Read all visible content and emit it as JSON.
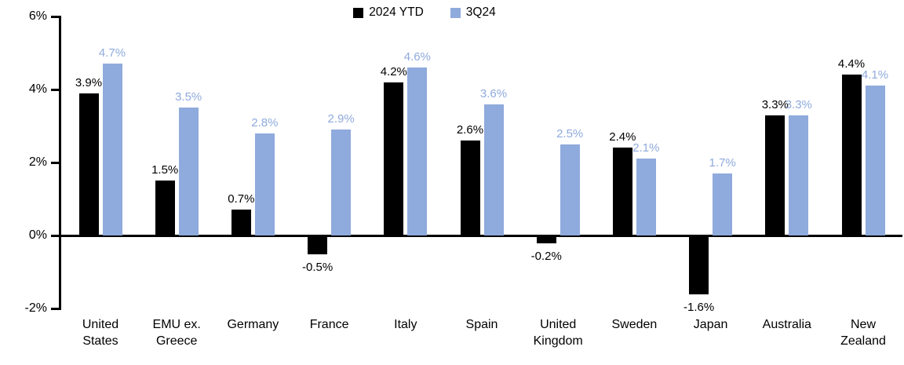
{
  "chart_data": {
    "type": "bar",
    "title": "",
    "xlabel": "",
    "ylabel": "",
    "grid": false,
    "categories": [
      "United States",
      "EMU ex. Greece",
      "Germany",
      "France",
      "Italy",
      "Spain",
      "United Kingdom",
      "Sweden",
      "Japan",
      "Australia",
      "New Zealand"
    ],
    "series": [
      {
        "name": "2024 YTD",
        "color": "#000000",
        "values": [
          3.9,
          1.5,
          0.7,
          -0.5,
          4.2,
          2.6,
          -0.2,
          2.4,
          -1.6,
          3.3,
          4.4
        ],
        "labels": [
          "3.9%",
          "1.5%",
          "0.7%",
          "-0.5%",
          "4.2%",
          "2.6%",
          "-0.2%",
          "2.4%",
          "-1.6%",
          "3.3%",
          "4.4%"
        ]
      },
      {
        "name": "3Q24",
        "color": "#8FAADC",
        "values": [
          4.7,
          3.5,
          2.8,
          2.9,
          4.6,
          3.6,
          2.5,
          2.1,
          1.7,
          3.3,
          4.1
        ],
        "labels": [
          "4.7%",
          "3.5%",
          "2.8%",
          "2.9%",
          "4.6%",
          "3.6%",
          "2.5%",
          "2.1%",
          "1.7%",
          "3.3%",
          "4.1%"
        ]
      }
    ],
    "y_axis": {
      "min": -2,
      "max": 6,
      "ticks": [
        {
          "label": "6%",
          "value": 6
        },
        {
          "label": "4%",
          "value": 4
        },
        {
          "label": "2%",
          "value": 2
        },
        {
          "label": "0%",
          "value": 0
        },
        {
          "label": "-2%",
          "value": -2
        }
      ]
    },
    "legend_position": "top-center",
    "axis_color": "#000000"
  }
}
